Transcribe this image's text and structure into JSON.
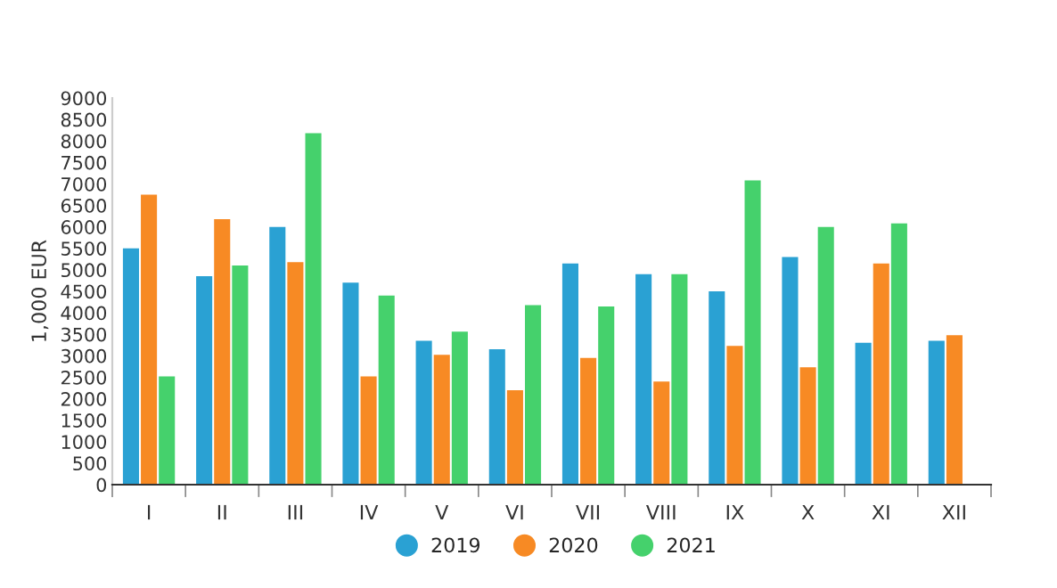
{
  "chart_data": {
    "type": "bar",
    "ylabel": "1,000 EUR",
    "categories": [
      "I",
      "II",
      "III",
      "IV",
      "V",
      "VI",
      "VII",
      "VIII",
      "IX",
      "X",
      "XI",
      "XII"
    ],
    "series": [
      {
        "name": "2019",
        "color": "#2aa1d3",
        "values": [
          5500,
          4850,
          6000,
          4700,
          3350,
          3150,
          5150,
          4900,
          4500,
          5300,
          3300,
          3350
        ]
      },
      {
        "name": "2020",
        "color": "#f78a24",
        "values": [
          6750,
          6180,
          5180,
          2520,
          3020,
          2200,
          2950,
          2400,
          3230,
          2730,
          5150,
          3480
        ]
      },
      {
        "name": "2021",
        "color": "#45d16c",
        "values": [
          2520,
          5100,
          8180,
          4400,
          3560,
          4180,
          4150,
          4900,
          7080,
          6000,
          6080,
          null
        ]
      }
    ],
    "ylim": [
      0,
      9000
    ],
    "yticks": [
      0,
      500,
      1000,
      1500,
      2000,
      2500,
      3000,
      3500,
      4000,
      4500,
      5000,
      5500,
      6000,
      6500,
      7000,
      7500,
      8000,
      8500,
      9000
    ],
    "grid": false,
    "legend": "bottom"
  }
}
